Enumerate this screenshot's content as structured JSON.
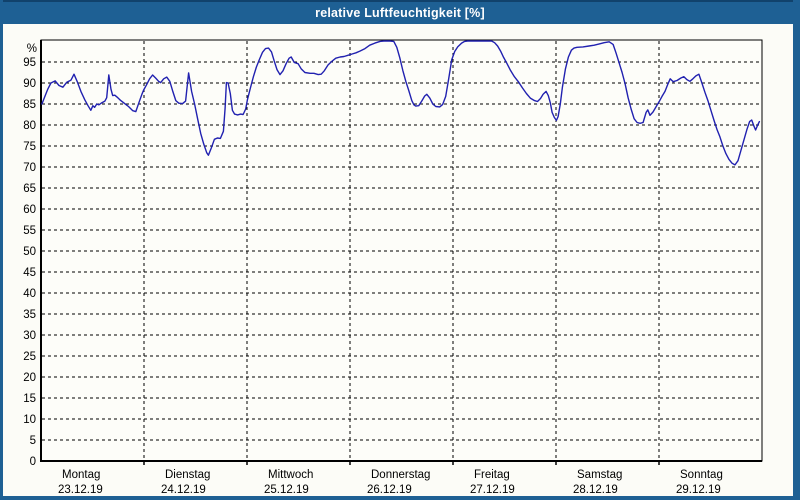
{
  "window": {
    "title": "relative Luftfeuchtigkeit [%]"
  },
  "colors": {
    "titlebar": "#1e6094",
    "border": "#1e6094",
    "line": "#2121b0",
    "grid": "#000000",
    "background": "#fcfcf7",
    "plot_bg": "#fdfdf9"
  },
  "chart_data": {
    "type": "line",
    "title": "relative Luftfeuchtigkeit [%]",
    "ylabel": "%",
    "ylim": [
      0,
      100
    ],
    "yticks": [
      0,
      5,
      10,
      15,
      20,
      25,
      30,
      35,
      40,
      45,
      50,
      55,
      60,
      65,
      70,
      75,
      80,
      85,
      90,
      95
    ],
    "x_unit": "hours since Montag 23.12.19 00:00",
    "xlim": [
      0,
      168
    ],
    "day_boundaries_hours": [
      24,
      48,
      72,
      96,
      120,
      144
    ],
    "grid": "dashed",
    "legend_position": "none",
    "xlabels": [
      {
        "name": "Montag",
        "date": "23.12.19"
      },
      {
        "name": "Dienstag",
        "date": "24.12.19"
      },
      {
        "name": "Mittwoch",
        "date": "25.12.19"
      },
      {
        "name": "Donnerstag",
        "date": "26.12.19"
      },
      {
        "name": "Freitag",
        "date": "27.12.19"
      },
      {
        "name": "Samstag",
        "date": "28.12.19"
      },
      {
        "name": "Sonntag",
        "date": "29.12.19"
      }
    ],
    "series": [
      {
        "name": "relative Luftfeuchtigkeit",
        "color": "#2121b0",
        "points": [
          [
            0.2,
            85.0
          ],
          [
            0.9,
            86.8
          ],
          [
            1.6,
            88.6
          ],
          [
            2.3,
            90.0
          ],
          [
            3.3,
            90.5
          ],
          [
            4.2,
            89.4
          ],
          [
            5.1,
            89.0
          ],
          [
            6.0,
            90.2
          ],
          [
            7.0,
            90.7
          ],
          [
            7.7,
            92.1
          ],
          [
            8.4,
            90.4
          ],
          [
            9.3,
            88.0
          ],
          [
            10.2,
            86.0
          ],
          [
            10.9,
            84.7
          ],
          [
            11.6,
            83.5
          ],
          [
            12.1,
            84.6
          ],
          [
            12.5,
            84.2
          ],
          [
            13.0,
            85.0
          ],
          [
            13.5,
            84.8
          ],
          [
            14.2,
            85.3
          ],
          [
            14.9,
            85.7
          ],
          [
            15.3,
            86.5
          ],
          [
            15.8,
            91.9
          ],
          [
            16.3,
            88.5
          ],
          [
            16.7,
            87.0
          ],
          [
            17.2,
            87.1
          ],
          [
            17.9,
            86.5
          ],
          [
            18.6,
            85.8
          ],
          [
            19.5,
            85.1
          ],
          [
            20.4,
            84.4
          ],
          [
            21.4,
            83.4
          ],
          [
            22.1,
            83.2
          ],
          [
            22.8,
            85.3
          ],
          [
            23.5,
            87.3
          ],
          [
            23.9,
            88.3
          ],
          [
            24.6,
            89.6
          ],
          [
            25.3,
            91.0
          ],
          [
            26.0,
            91.9
          ],
          [
            26.7,
            91.2
          ],
          [
            27.4,
            90.4
          ],
          [
            27.9,
            90.1
          ],
          [
            28.6,
            91.0
          ],
          [
            29.3,
            91.4
          ],
          [
            30.0,
            90.4
          ],
          [
            30.7,
            88.0
          ],
          [
            31.4,
            85.8
          ],
          [
            32.1,
            85.2
          ],
          [
            33.0,
            85.1
          ],
          [
            33.7,
            85.7
          ],
          [
            34.4,
            92.4
          ],
          [
            35.1,
            88.0
          ],
          [
            35.8,
            85.0
          ],
          [
            36.5,
            81.5
          ],
          [
            37.2,
            78.0
          ],
          [
            37.9,
            75.5
          ],
          [
            38.6,
            73.4
          ],
          [
            39.0,
            72.8
          ],
          [
            39.7,
            74.6
          ],
          [
            40.4,
            76.6
          ],
          [
            41.1,
            76.9
          ],
          [
            41.8,
            76.8
          ],
          [
            42.5,
            78.5
          ],
          [
            42.9,
            84.0
          ],
          [
            43.2,
            90.1
          ],
          [
            43.6,
            90.0
          ],
          [
            44.1,
            87.5
          ],
          [
            44.6,
            83.5
          ],
          [
            45.1,
            82.6
          ],
          [
            45.8,
            82.4
          ],
          [
            46.5,
            82.6
          ],
          [
            47.1,
            82.5
          ],
          [
            47.7,
            83.8
          ],
          [
            48.1,
            86.0
          ],
          [
            48.8,
            88.8
          ],
          [
            49.5,
            91.5
          ],
          [
            50.2,
            93.8
          ],
          [
            50.9,
            95.6
          ],
          [
            51.6,
            97.3
          ],
          [
            52.3,
            98.2
          ],
          [
            53.0,
            98.3
          ],
          [
            53.7,
            97.4
          ],
          [
            54.3,
            95.4
          ],
          [
            55.0,
            93.2
          ],
          [
            55.7,
            92.0
          ],
          [
            56.4,
            92.9
          ],
          [
            57.1,
            94.6
          ],
          [
            57.8,
            95.9
          ],
          [
            58.3,
            96.2
          ],
          [
            59.0,
            94.9
          ],
          [
            59.9,
            94.6
          ],
          [
            60.6,
            93.4
          ],
          [
            61.5,
            92.5
          ],
          [
            62.7,
            92.3
          ],
          [
            63.6,
            92.3
          ],
          [
            64.6,
            92.0
          ],
          [
            65.3,
            92.1
          ],
          [
            66.0,
            92.9
          ],
          [
            66.9,
            94.3
          ],
          [
            67.8,
            95.2
          ],
          [
            68.7,
            95.9
          ],
          [
            69.7,
            96.2
          ],
          [
            70.6,
            96.3
          ],
          [
            71.5,
            96.6
          ],
          [
            72.5,
            96.9
          ],
          [
            73.4,
            97.2
          ],
          [
            74.3,
            97.6
          ],
          [
            75.5,
            98.2
          ],
          [
            76.6,
            99.0
          ],
          [
            77.8,
            99.5
          ],
          [
            79.0,
            99.9
          ],
          [
            79.9,
            100.0
          ],
          [
            81.3,
            100.0
          ],
          [
            82.2,
            99.9
          ],
          [
            82.9,
            98.5
          ],
          [
            83.6,
            96.0
          ],
          [
            84.3,
            93.0
          ],
          [
            85.0,
            90.4
          ],
          [
            85.7,
            88.2
          ],
          [
            86.4,
            85.8
          ],
          [
            86.9,
            84.8
          ],
          [
            87.3,
            84.5
          ],
          [
            88.0,
            84.6
          ],
          [
            88.7,
            85.7
          ],
          [
            89.4,
            86.9
          ],
          [
            89.9,
            87.3
          ],
          [
            90.6,
            86.4
          ],
          [
            91.3,
            85.0
          ],
          [
            92.0,
            84.4
          ],
          [
            92.9,
            84.3
          ],
          [
            93.6,
            84.9
          ],
          [
            94.3,
            86.8
          ],
          [
            95.0,
            91.0
          ],
          [
            95.7,
            95.5
          ],
          [
            96.4,
            97.5
          ],
          [
            97.1,
            98.6
          ],
          [
            98.0,
            99.5
          ],
          [
            98.7,
            99.9
          ],
          [
            99.4,
            100.0
          ],
          [
            102.0,
            100.0
          ],
          [
            105.0,
            100.0
          ],
          [
            105.7,
            99.6
          ],
          [
            106.4,
            98.8
          ],
          [
            107.1,
            97.6
          ],
          [
            107.8,
            96.1
          ],
          [
            108.5,
            94.8
          ],
          [
            109.4,
            93.0
          ],
          [
            110.3,
            91.5
          ],
          [
            111.3,
            90.2
          ],
          [
            112.2,
            88.8
          ],
          [
            113.1,
            87.5
          ],
          [
            114.0,
            86.4
          ],
          [
            115.0,
            85.8
          ],
          [
            115.7,
            85.6
          ],
          [
            116.4,
            86.3
          ],
          [
            117.0,
            87.3
          ],
          [
            117.7,
            88.0
          ],
          [
            118.2,
            87.0
          ],
          [
            118.7,
            85.2
          ],
          [
            119.1,
            83.0
          ],
          [
            119.6,
            81.8
          ],
          [
            120.1,
            81.1
          ],
          [
            120.5,
            82.0
          ],
          [
            121.0,
            85.0
          ],
          [
            121.5,
            89.0
          ],
          [
            122.2,
            93.3
          ],
          [
            122.9,
            96.2
          ],
          [
            123.6,
            97.8
          ],
          [
            124.2,
            98.3
          ],
          [
            124.9,
            98.5
          ],
          [
            126.3,
            98.6
          ],
          [
            127.7,
            98.8
          ],
          [
            128.9,
            99.0
          ],
          [
            130.1,
            99.3
          ],
          [
            131.2,
            99.6
          ],
          [
            132.4,
            99.8
          ],
          [
            133.3,
            99.2
          ],
          [
            134.0,
            97.1
          ],
          [
            134.7,
            94.8
          ],
          [
            135.4,
            92.5
          ],
          [
            136.1,
            89.8
          ],
          [
            136.8,
            86.5
          ],
          [
            137.5,
            83.8
          ],
          [
            138.2,
            81.5
          ],
          [
            138.9,
            80.6
          ],
          [
            139.6,
            80.4
          ],
          [
            140.3,
            80.6
          ],
          [
            141.0,
            83.0
          ],
          [
            141.4,
            83.6
          ],
          [
            141.9,
            82.3
          ],
          [
            142.6,
            83.1
          ],
          [
            143.3,
            84.3
          ],
          [
            144.0,
            85.5
          ],
          [
            144.7,
            86.8
          ],
          [
            145.4,
            88.0
          ],
          [
            146.1,
            89.8
          ],
          [
            146.6,
            91.0
          ],
          [
            147.3,
            90.3
          ],
          [
            148.2,
            90.6
          ],
          [
            149.1,
            91.2
          ],
          [
            149.8,
            91.5
          ],
          [
            150.5,
            90.8
          ],
          [
            151.2,
            90.4
          ],
          [
            151.9,
            91.0
          ],
          [
            152.6,
            91.7
          ],
          [
            153.3,
            92.1
          ],
          [
            154.0,
            90.0
          ],
          [
            154.7,
            87.8
          ],
          [
            155.4,
            85.8
          ],
          [
            156.1,
            83.5
          ],
          [
            156.8,
            81.2
          ],
          [
            157.5,
            79.0
          ],
          [
            158.2,
            77.2
          ],
          [
            158.9,
            75.0
          ],
          [
            159.6,
            73.2
          ],
          [
            160.3,
            71.8
          ],
          [
            161.0,
            70.9
          ],
          [
            161.7,
            70.5
          ],
          [
            162.4,
            71.5
          ],
          [
            163.1,
            74.0
          ],
          [
            163.8,
            76.5
          ],
          [
            164.5,
            79.0
          ],
          [
            165.1,
            80.8
          ],
          [
            165.6,
            81.2
          ],
          [
            166.1,
            79.8
          ],
          [
            166.5,
            78.8
          ],
          [
            167.0,
            80.0
          ],
          [
            167.4,
            80.8
          ]
        ]
      }
    ]
  }
}
